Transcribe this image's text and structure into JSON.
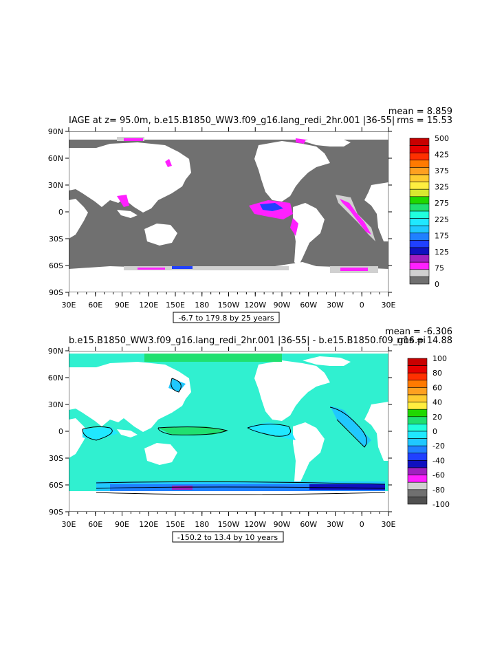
{
  "panels": [
    {
      "title": "IAGE at z=   95.0m, b.e15.B1850_WW3.f09_g16.lang_redi_2hr.001 |36-55|",
      "stat_line1": "mean = 8.859",
      "stat_line2": "rms = 15.53",
      "range_label": "-6.7 to 179.8 by 25 years",
      "x_ticks": [
        "30E",
        "60E",
        "90E",
        "120E",
        "150E",
        "180",
        "150W",
        "120W",
        "90W",
        "60W",
        "30W",
        "0",
        "30E"
      ],
      "y_ticks": [
        "90N",
        "60N",
        "30N",
        "0",
        "30S",
        "60S",
        "90S"
      ],
      "colorbar_labels": [
        "500",
        "425",
        "375",
        "325",
        "275",
        "225",
        "175",
        "125",
        "75",
        "0"
      ],
      "colorbar_colors": [
        "#c80000",
        "#e60000",
        "#ff3000",
        "#ff7a00",
        "#ffa020",
        "#ffcc30",
        "#ffee40",
        "#d8e830",
        "#20d800",
        "#20e070",
        "#20ffdd",
        "#20e8ff",
        "#20c8ff",
        "#2080ff",
        "#2040ff",
        "#1010c0",
        "#a020c0",
        "#ff20ff",
        "#d0d0d0",
        "#707070"
      ],
      "land_color": "#ffffff",
      "ocean_color": "#707070"
    },
    {
      "title": "b.e15.B1850_WW3.f09_g16.lang_redi_2hr.001 |36-55| - b.e15.B1850.f09_g16.pi",
      "stat_line1": "mean = -6.306",
      "stat_line2": "rms = 14.88",
      "range_label": "-150.2 to 13.4 by 10 years",
      "x_ticks": [
        "30E",
        "60E",
        "90E",
        "120E",
        "150E",
        "180",
        "150W",
        "120W",
        "90W",
        "60W",
        "30W",
        "0",
        "30E"
      ],
      "y_ticks": [
        "90N",
        "60N",
        "30N",
        "0",
        "30S",
        "60S",
        "90S"
      ],
      "colorbar_labels": [
        "100",
        "80",
        "60",
        "40",
        "20",
        "0",
        "-20",
        "-40",
        "-60",
        "-80",
        "-100"
      ],
      "colorbar_colors": [
        "#c80000",
        "#e60000",
        "#ff3000",
        "#ff7a00",
        "#ffa020",
        "#ffcc30",
        "#ffee40",
        "#20d800",
        "#20e070",
        "#20ffdd",
        "#20e8ff",
        "#20c8ff",
        "#2080ff",
        "#2040ff",
        "#1010c0",
        "#a020c0",
        "#ff20ff",
        "#d0d0d0",
        "#707070",
        "#505050"
      ],
      "land_color": "#ffffff",
      "ocean_color": "#30f0d0"
    }
  ],
  "map_data": {
    "projection": "cylindrical-equidistant",
    "lon_range": [
      30,
      390
    ],
    "lat_range": [
      -90,
      90
    ]
  }
}
